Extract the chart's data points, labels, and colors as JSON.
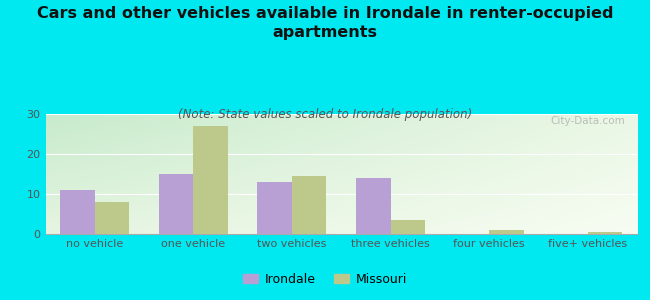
{
  "title": "Cars and other vehicles available in Irondale in renter-occupied\napartments",
  "subtitle": "(Note: State values scaled to Irondale population)",
  "categories": [
    "no vehicle",
    "one vehicle",
    "two vehicles",
    "three vehicles",
    "four vehicles",
    "five+ vehicles"
  ],
  "irondale": [
    11,
    15,
    13,
    14,
    0,
    0
  ],
  "missouri": [
    8,
    27,
    14.5,
    3.5,
    1,
    0.5
  ],
  "irondale_color": "#b9a0d4",
  "missouri_color": "#bdc98a",
  "background_color": "#00e8f0",
  "ylim": [
    0,
    30
  ],
  "yticks": [
    0,
    10,
    20,
    30
  ],
  "bar_width": 0.35,
  "title_fontsize": 11.5,
  "subtitle_fontsize": 8.5,
  "tick_fontsize": 8,
  "legend_labels": [
    "Irondale",
    "Missouri"
  ],
  "watermark": "City-Data.com"
}
